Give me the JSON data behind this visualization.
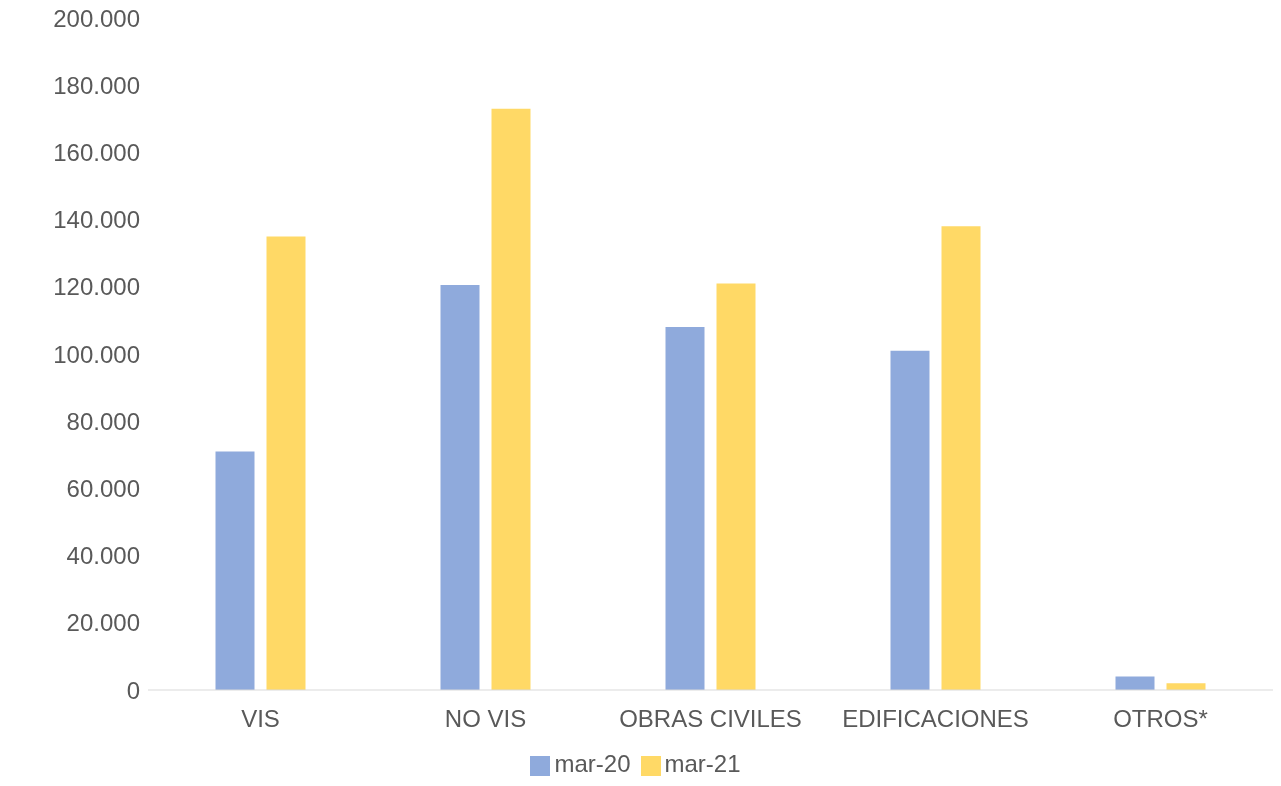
{
  "chart_data": {
    "type": "bar",
    "categories": [
      "VIS",
      "NO VIS",
      "OBRAS CIVILES",
      "EDIFICACIONES",
      "OTROS*"
    ],
    "series": [
      {
        "name": "mar-20",
        "color": "#8faadc",
        "values": [
          71000,
          120500,
          108000,
          101000,
          4000
        ]
      },
      {
        "name": "mar-21",
        "color": "#ffd966",
        "values": [
          135000,
          173000,
          121000,
          138000,
          2000
        ]
      }
    ],
    "ylim": [
      0,
      200000
    ],
    "yticks": [
      {
        "value": 0,
        "label": "0"
      },
      {
        "value": 20000,
        "label": "20.000"
      },
      {
        "value": 40000,
        "label": "40.000"
      },
      {
        "value": 60000,
        "label": "60.000"
      },
      {
        "value": 80000,
        "label": "80.000"
      },
      {
        "value": 100000,
        "label": "100.000"
      },
      {
        "value": 120000,
        "label": "120.000"
      },
      {
        "value": 140000,
        "label": "140.000"
      },
      {
        "value": 160000,
        "label": "160.000"
      },
      {
        "value": 180000,
        "label": "180.000"
      },
      {
        "value": 200000,
        "label": "200.000"
      }
    ],
    "grid": false,
    "legend": "bottom"
  }
}
